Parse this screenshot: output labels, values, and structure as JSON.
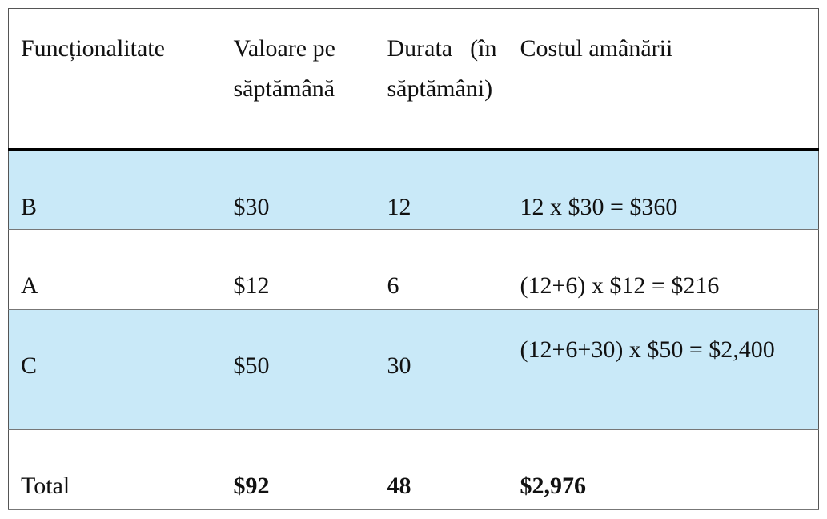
{
  "table": {
    "header": [
      "Funcționalitate",
      "Valoare pe săptămână",
      "Durata (în săptămâni)",
      "Costul amânării"
    ],
    "rows": [
      [
        "B",
        "$30",
        "12",
        "12 x $30 = $360"
      ],
      [
        "A",
        "$12",
        "6",
        "(12+6) x $12 = $216"
      ],
      [
        "C",
        "$50",
        "30",
        "(12+6+30) x $50 = $2,400"
      ]
    ],
    "total": [
      "Total",
      "$92",
      "48",
      "$2,976"
    ]
  }
}
